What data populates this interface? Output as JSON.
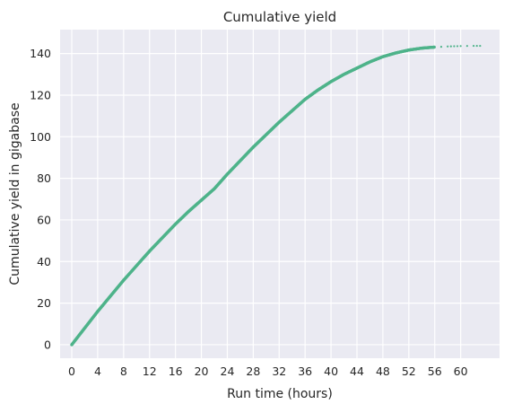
{
  "chart_data": {
    "type": "scatter",
    "title": "Cumulative yield",
    "xlabel": "Run time (hours)",
    "ylabel": "Cumulative yield in gigabase",
    "xlim": [
      -1.8,
      66.0
    ],
    "ylim": [
      -6.5,
      151.5
    ],
    "xticks": [
      0,
      4,
      8,
      12,
      16,
      20,
      24,
      28,
      32,
      36,
      40,
      44,
      48,
      52,
      56,
      60
    ],
    "yticks": [
      0,
      20,
      40,
      60,
      80,
      100,
      120,
      140
    ],
    "grid": true,
    "legend": "none",
    "series": [
      {
        "color": "#4eb38a",
        "points": [
          [
            0,
            0
          ],
          [
            2,
            8
          ],
          [
            4,
            16
          ],
          [
            6,
            23.5
          ],
          [
            8,
            31
          ],
          [
            10,
            38
          ],
          [
            12,
            45
          ],
          [
            14,
            51.5
          ],
          [
            16,
            58
          ],
          [
            18,
            64
          ],
          [
            20,
            69.5
          ],
          [
            22,
            75
          ],
          [
            24,
            82
          ],
          [
            26,
            88.5
          ],
          [
            28,
            95
          ],
          [
            30,
            101
          ],
          [
            32,
            107
          ],
          [
            34,
            112.5
          ],
          [
            36,
            118
          ],
          [
            38,
            122.5
          ],
          [
            40,
            126.5
          ],
          [
            42,
            130
          ],
          [
            44,
            133
          ],
          [
            46,
            136
          ],
          [
            48,
            138.5
          ],
          [
            50,
            140.3
          ],
          [
            52,
            141.7
          ],
          [
            54,
            142.6
          ],
          [
            56,
            143.1
          ],
          [
            58,
            143.4
          ],
          [
            59,
            143.5
          ],
          [
            60,
            143.6
          ],
          [
            62,
            143.7
          ],
          [
            63,
            143.7
          ]
        ]
      }
    ]
  },
  "colors": {
    "plot_background": "#eaeaf2",
    "grid": "#ffffff",
    "point": "#4eb38a",
    "text": "#262626"
  }
}
